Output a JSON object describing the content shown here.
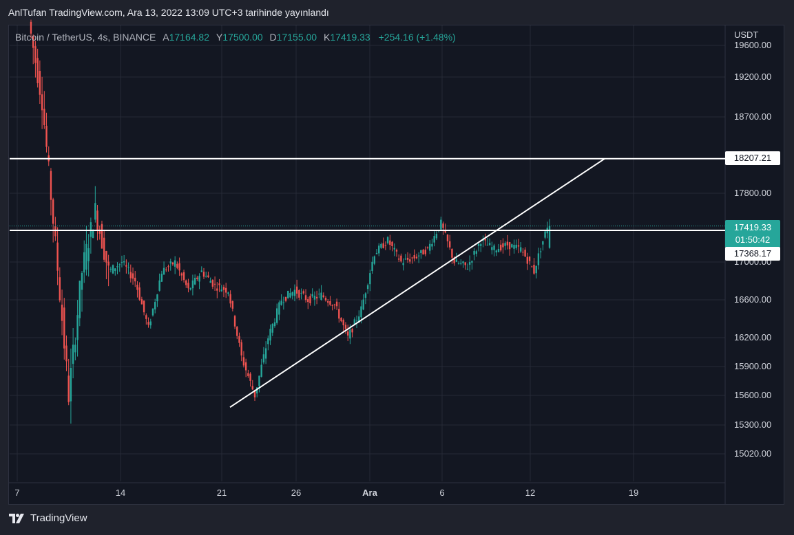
{
  "header": {
    "publish_text": "AnlTufan TradingView.com, Ara 13, 2022 13:09 UTC+3 tarihinde yayınlandı"
  },
  "legend": {
    "symbol": "Bitcoin / TetherUS, 4s, BINANCE",
    "open_label": "A",
    "open": "17164.82",
    "high_label": "Y",
    "high": "17500.00",
    "low_label": "D",
    "low": "17155.00",
    "close_label": "K",
    "close": "17419.33",
    "change": "+254.16 (+1.48%)"
  },
  "axis": {
    "currency": "USDT",
    "price_ticks": [
      "19600.00",
      "19200.00",
      "18700.00",
      "17800.00",
      "17000.00",
      "16600.00",
      "16200.00",
      "15900.00",
      "15600.00",
      "15300.00",
      "15020.00"
    ],
    "date_ticks": [
      "7",
      "14",
      "21",
      "26",
      "Ara",
      "6",
      "12",
      "19"
    ]
  },
  "price_tags": {
    "resistance": "18207.21",
    "current": "17419.33",
    "countdown": "01:50:42",
    "support": "17368.17"
  },
  "footer": {
    "brand": "TradingView"
  },
  "colors": {
    "up": "#26a69a",
    "down": "#ef5350",
    "background": "#131722",
    "line": "#ffffff"
  },
  "chart_data": {
    "type": "candlestick",
    "symbol": "Bitcoin / TetherUS",
    "interval": "4s",
    "exchange": "BINANCE",
    "last": {
      "open": 17164.82,
      "high": 17500.0,
      "low": 17155.0,
      "close": 17419.33
    },
    "horizontal_lines": [
      18207.21,
      17368.17
    ],
    "trendline": {
      "from": {
        "date": "21",
        "price": 15480
      },
      "to": {
        "date": "17",
        "price": 18207.21
      }
    },
    "price_path": [
      [
        "7",
        19900
      ],
      [
        "8",
        18900
      ],
      [
        "8",
        17200
      ],
      [
        "9",
        15600
      ],
      [
        "9",
        16900
      ],
      [
        "10",
        17600
      ],
      [
        "11",
        16900
      ],
      [
        "12",
        17000
      ],
      [
        "13",
        16800
      ],
      [
        "14",
        16300
      ],
      [
        "15",
        16900
      ],
      [
        "16",
        17000
      ],
      [
        "17",
        16700
      ],
      [
        "18",
        16900
      ],
      [
        "19",
        16750
      ],
      [
        "20",
        16700
      ],
      [
        "21",
        16000
      ],
      [
        "21",
        15600
      ],
      [
        "22",
        16200
      ],
      [
        "23",
        16600
      ],
      [
        "24",
        16700
      ],
      [
        "25",
        16600
      ],
      [
        "26",
        16650
      ],
      [
        "27",
        16550
      ],
      [
        "28",
        16200
      ],
      [
        "29",
        16500
      ],
      [
        "30",
        17100
      ],
      [
        "Ara",
        17250
      ],
      [
        "2",
        17000
      ],
      [
        "3",
        17050
      ],
      [
        "4",
        17150
      ],
      [
        "5",
        17450
      ],
      [
        "6",
        17000
      ],
      [
        "7",
        16950
      ],
      [
        "8",
        17250
      ],
      [
        "9",
        17150
      ],
      [
        "10",
        17200
      ],
      [
        "11",
        17150
      ],
      [
        "12",
        16900
      ],
      [
        "13",
        17419.33
      ]
    ],
    "ylim": [
      14900,
      19700
    ],
    "grid": true
  }
}
